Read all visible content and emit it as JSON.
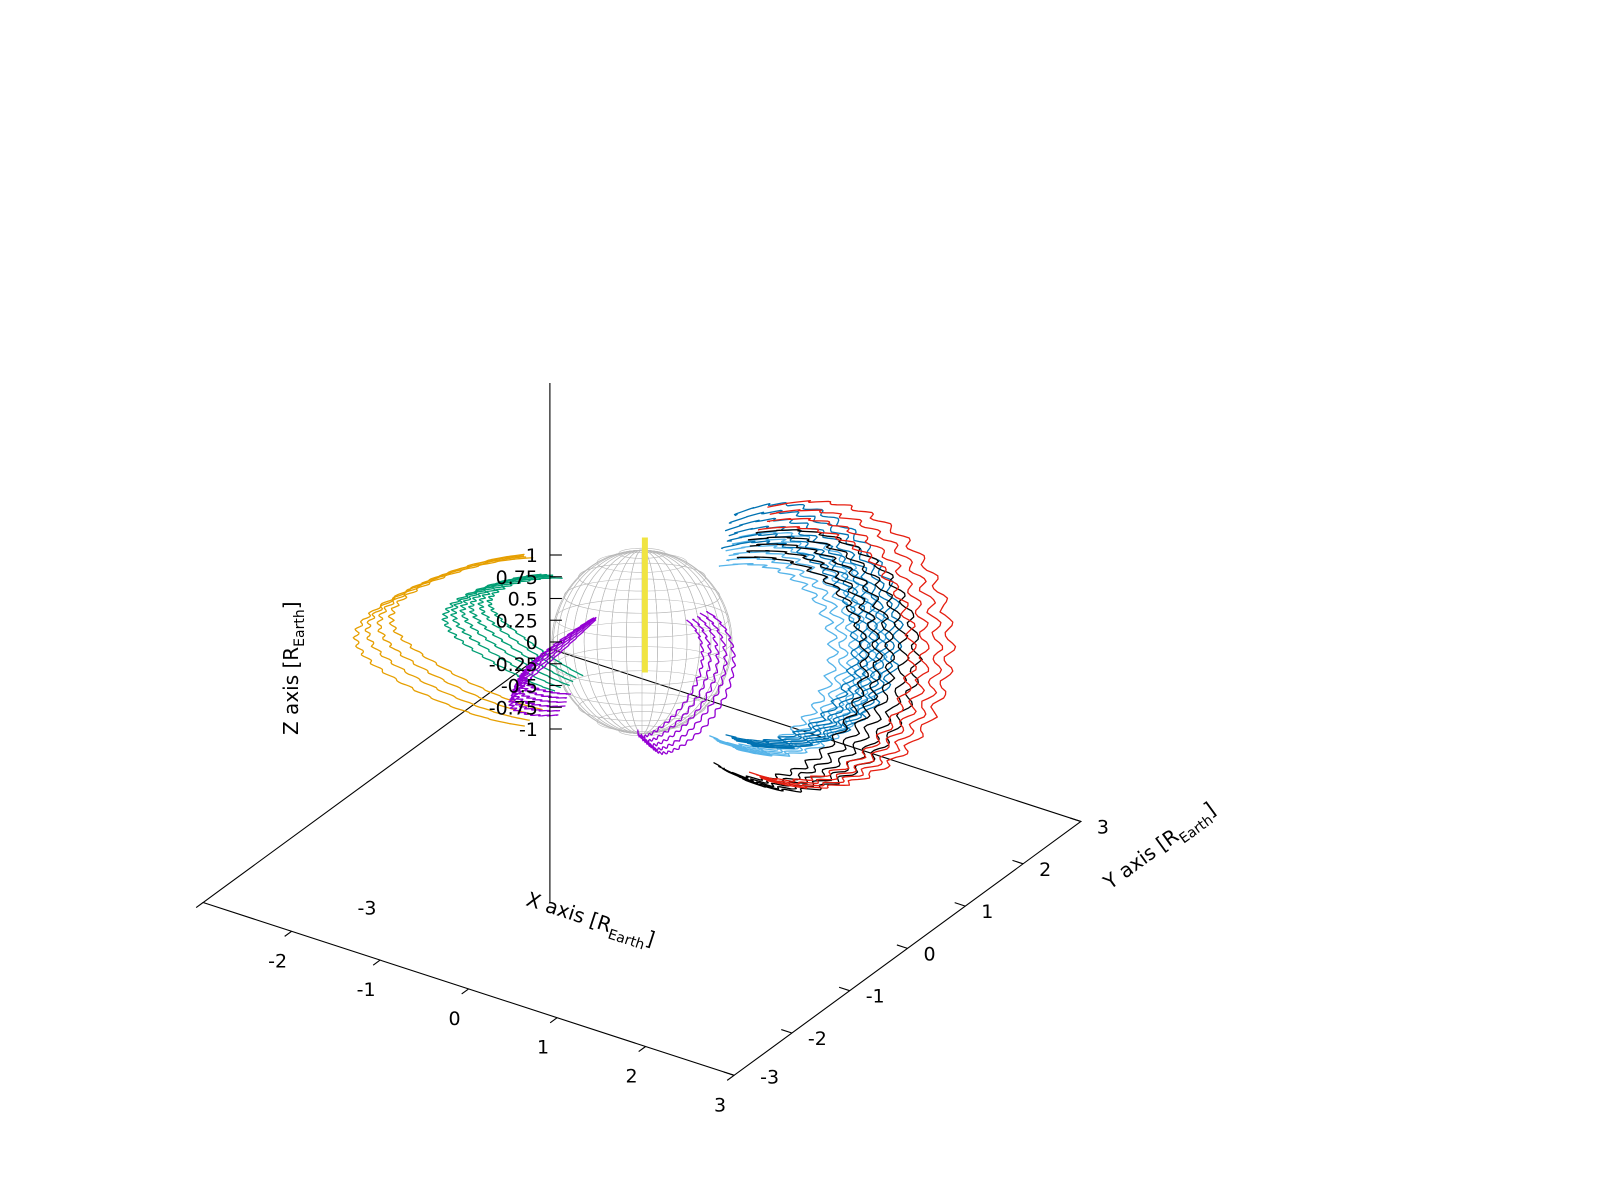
{
  "chart_data": {
    "type": "line3d",
    "xlabel": "X axis [R",
    "xlabel_sub": "Earth",
    "xlabel_end": "]",
    "ylabel": "Y axis [R",
    "ylabel_sub": "Earth",
    "ylabel_end": "]",
    "zlabel": "Z axis [R",
    "zlabel_sub": "Earth",
    "zlabel_end": "]",
    "xlim": [
      -3,
      3
    ],
    "ylim": [
      -3,
      3
    ],
    "zlim": [
      -1,
      1
    ],
    "x_ticks": [
      "-3",
      "-2",
      "-1",
      "0",
      "1",
      "2",
      "3"
    ],
    "y_ticks": [
      "-3",
      "-2",
      "-1",
      "0",
      "1",
      "2",
      "3"
    ],
    "z_ticks": [
      "-1",
      "-0.75",
      "-0.5",
      "-0.25",
      "0",
      "0.25",
      "0.5",
      "0.75",
      "1"
    ],
    "earth": {
      "radius": 1.0,
      "center": [
        0,
        0,
        0
      ],
      "color": "#b8b8b8"
    },
    "series": [
      {
        "color": "#e69f00",
        "kind": "dipole-drift",
        "count": 4,
        "L": 2.6,
        "phi_deg": 205,
        "lat_max_deg": 48
      },
      {
        "color": "#009e73",
        "kind": "dipole-drift",
        "count": 6,
        "L": 1.75,
        "phi_deg": 190,
        "lat_max_deg": 45
      },
      {
        "color": "#9400d3",
        "kind": "dipole-drift",
        "count": 6,
        "L": 1.4,
        "phi_deg": 240,
        "lat_max_deg": 42
      },
      {
        "color": "#9400d3",
        "kind": "dipole-drift",
        "count": 5,
        "L": 1.45,
        "phi_deg": 320,
        "lat_max_deg": 42
      },
      {
        "color": "#f0e442",
        "kind": "polar-column",
        "count": 1
      },
      {
        "color": "#56b4e9",
        "kind": "dipole-drift",
        "count": 6,
        "L": 2.1,
        "phi_deg": 20,
        "lat_max_deg": 50
      },
      {
        "color": "#0072b2",
        "kind": "dipole-drift",
        "count": 6,
        "L": 2.3,
        "phi_deg": 35,
        "lat_max_deg": 50
      },
      {
        "color": "#000000",
        "kind": "dipole-drift",
        "count": 5,
        "L": 2.5,
        "phi_deg": 10,
        "lat_max_deg": 50
      },
      {
        "color": "#e51e10",
        "kind": "dipole-drift",
        "count": 4,
        "L": 2.8,
        "phi_deg": 25,
        "lat_max_deg": 48
      }
    ]
  }
}
